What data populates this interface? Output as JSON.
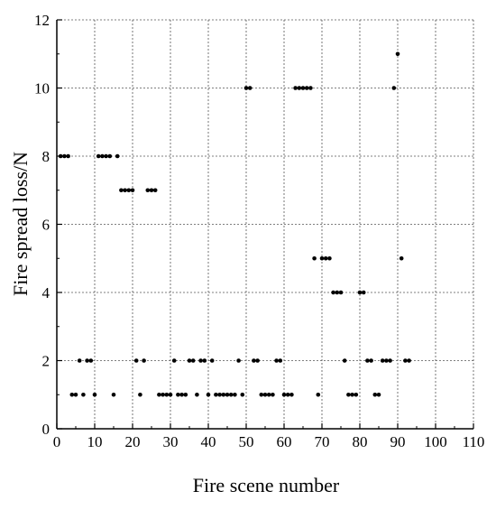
{
  "chart_data": {
    "type": "scatter",
    "xlabel": "Fire scene number",
    "ylabel": "Fire spread loss/N",
    "xlim": [
      0,
      110
    ],
    "ylim": [
      0,
      12
    ],
    "xticks": [
      0,
      10,
      20,
      30,
      40,
      50,
      60,
      70,
      80,
      90,
      100,
      110
    ],
    "yticks": [
      0,
      2,
      4,
      6,
      8,
      10,
      12
    ],
    "grid": true,
    "point_color": "#000000",
    "points": [
      [
        1,
        8
      ],
      [
        2,
        8
      ],
      [
        3,
        8
      ],
      [
        4,
        1
      ],
      [
        5,
        1
      ],
      [
        6,
        2
      ],
      [
        7,
        1
      ],
      [
        8,
        2
      ],
      [
        9,
        2
      ],
      [
        10,
        1
      ],
      [
        11,
        8
      ],
      [
        12,
        8
      ],
      [
        13,
        8
      ],
      [
        14,
        8
      ],
      [
        15,
        1
      ],
      [
        16,
        8
      ],
      [
        17,
        7
      ],
      [
        18,
        7
      ],
      [
        19,
        7
      ],
      [
        20,
        7
      ],
      [
        21,
        2
      ],
      [
        22,
        1
      ],
      [
        23,
        2
      ],
      [
        24,
        7
      ],
      [
        25,
        7
      ],
      [
        26,
        7
      ],
      [
        27,
        1
      ],
      [
        28,
        1
      ],
      [
        29,
        1
      ],
      [
        30,
        1
      ],
      [
        31,
        2
      ],
      [
        32,
        1
      ],
      [
        33,
        1
      ],
      [
        34,
        1
      ],
      [
        35,
        2
      ],
      [
        36,
        2
      ],
      [
        37,
        1
      ],
      [
        38,
        2
      ],
      [
        39,
        2
      ],
      [
        40,
        1
      ],
      [
        41,
        2
      ],
      [
        42,
        1
      ],
      [
        43,
        1
      ],
      [
        44,
        1
      ],
      [
        45,
        1
      ],
      [
        46,
        1
      ],
      [
        47,
        1
      ],
      [
        48,
        2
      ],
      [
        49,
        1
      ],
      [
        50,
        10
      ],
      [
        51,
        10
      ],
      [
        52,
        2
      ],
      [
        53,
        2
      ],
      [
        54,
        1
      ],
      [
        55,
        1
      ],
      [
        56,
        1
      ],
      [
        57,
        1
      ],
      [
        58,
        2
      ],
      [
        59,
        2
      ],
      [
        60,
        1
      ],
      [
        61,
        1
      ],
      [
        62,
        1
      ],
      [
        63,
        10
      ],
      [
        64,
        10
      ],
      [
        65,
        10
      ],
      [
        66,
        10
      ],
      [
        67,
        10
      ],
      [
        68,
        5
      ],
      [
        69,
        1
      ],
      [
        70,
        5
      ],
      [
        71,
        5
      ],
      [
        72,
        5
      ],
      [
        73,
        4
      ],
      [
        74,
        4
      ],
      [
        75,
        4
      ],
      [
        76,
        2
      ],
      [
        77,
        1
      ],
      [
        78,
        1
      ],
      [
        79,
        1
      ],
      [
        80,
        4
      ],
      [
        81,
        4
      ],
      [
        82,
        2
      ],
      [
        83,
        2
      ],
      [
        84,
        1
      ],
      [
        85,
        1
      ],
      [
        86,
        2
      ],
      [
        87,
        2
      ],
      [
        88,
        2
      ],
      [
        89,
        10
      ],
      [
        90,
        11
      ],
      [
        91,
        5
      ],
      [
        92,
        2
      ],
      [
        93,
        2
      ]
    ]
  }
}
